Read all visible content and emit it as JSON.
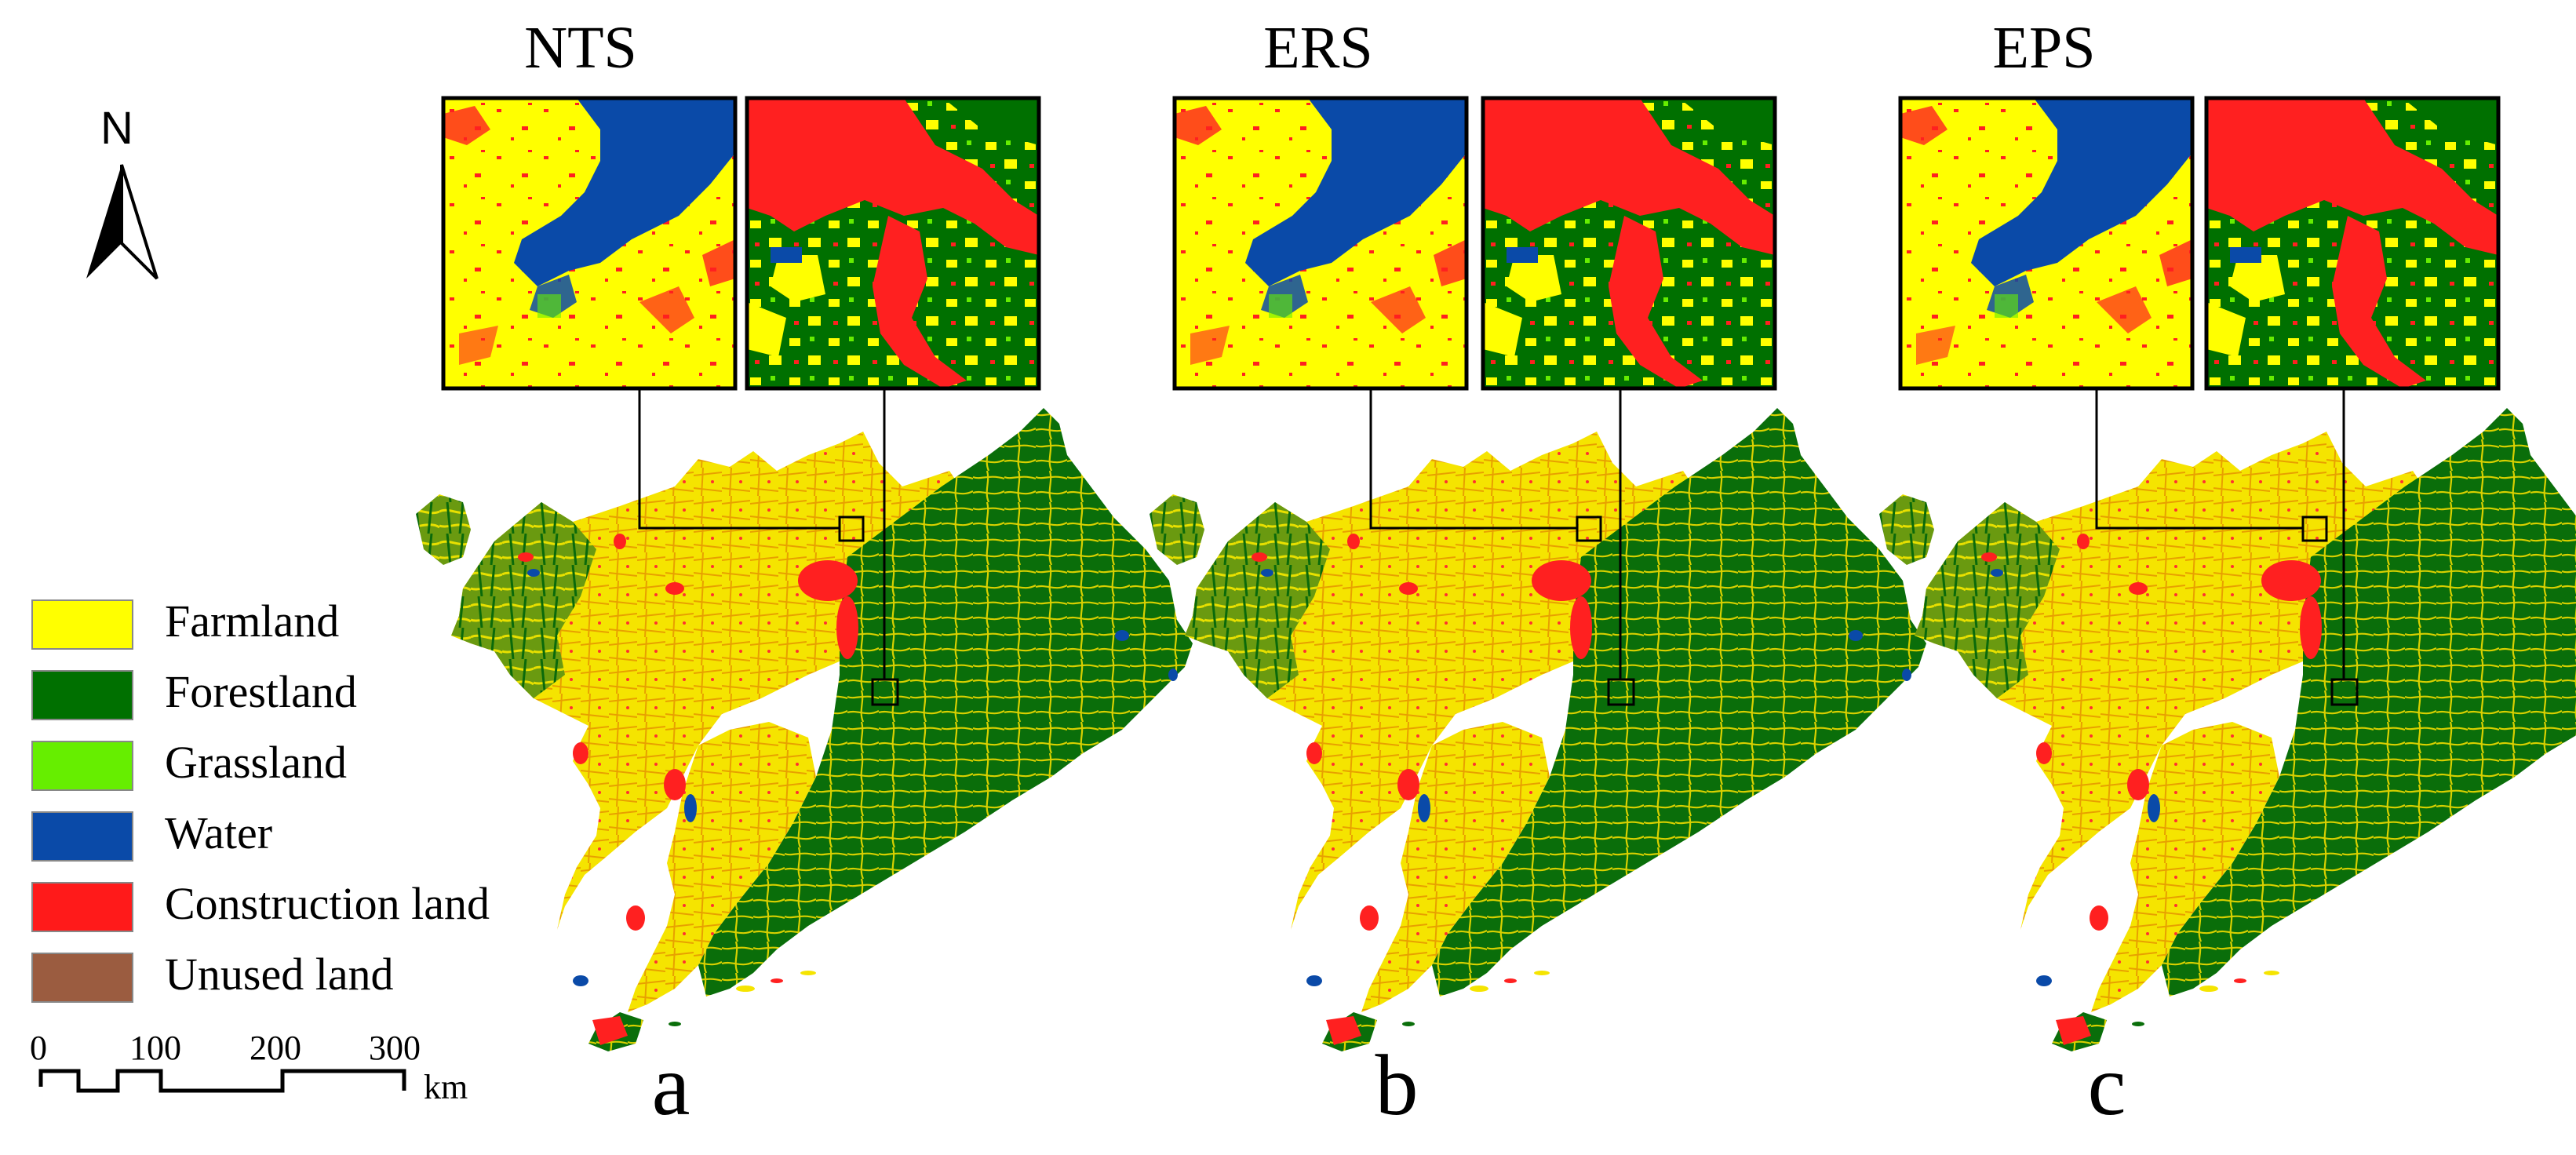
{
  "panels": [
    {
      "title": "NTS",
      "letter": "a"
    },
    {
      "title": "ERS",
      "letter": "b"
    },
    {
      "title": "EPS",
      "letter": "c"
    }
  ],
  "north_arrow": {
    "label": "N",
    "icon": "north-arrow-icon"
  },
  "legend": {
    "items": [
      {
        "label": "Farmland",
        "color": "#ffff00"
      },
      {
        "label": "Forestland",
        "color": "#007000"
      },
      {
        "label": "Grassland",
        "color": "#66ee00"
      },
      {
        "label": "Water",
        "color": "#0a4aa8"
      },
      {
        "label": "Construction land",
        "color": "#ff1a1a"
      },
      {
        "label": "Unused land",
        "color": "#9b5c40"
      }
    ]
  },
  "scale_bar": {
    "ticks": [
      "0",
      "100",
      "200",
      "300"
    ],
    "unit": "km"
  }
}
